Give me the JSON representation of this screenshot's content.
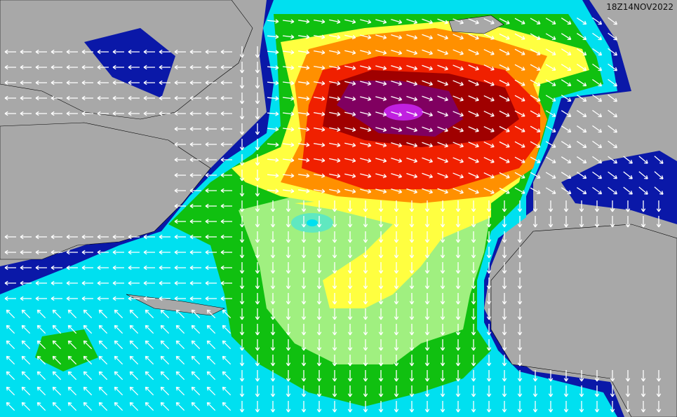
{
  "timestamp": "18Z14NOV2022"
}
